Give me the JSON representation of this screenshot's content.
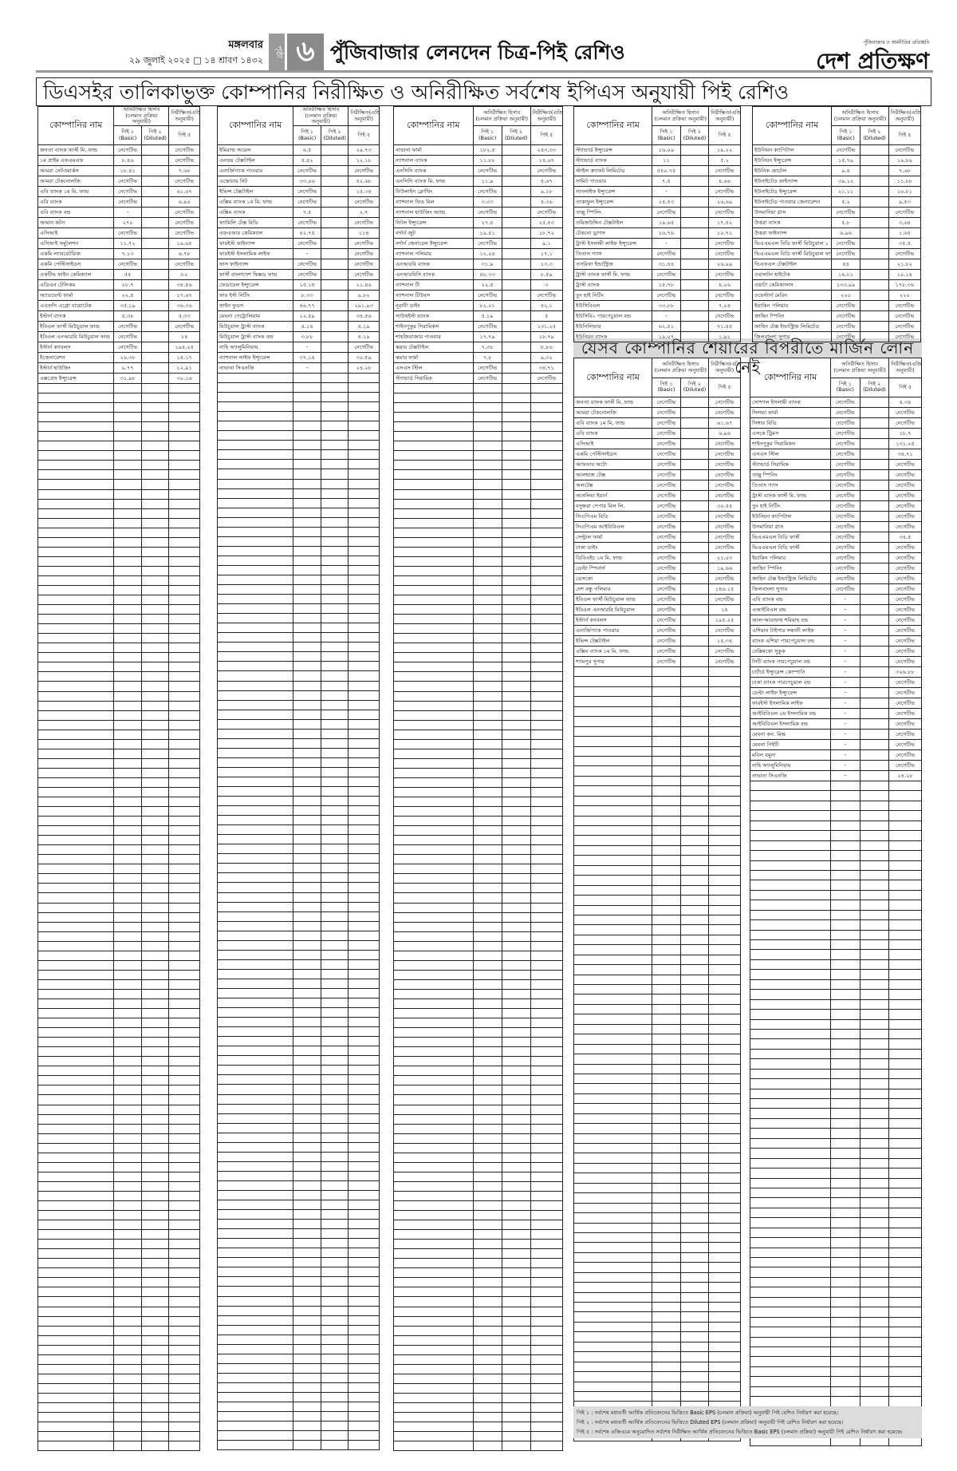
{
  "masthead": {
    "day": "মঙ্গলবার",
    "date": "২৯ জুলাই ২০২৫ □ ১৪ শ্রাবণ ১৪৩২",
    "page_label": "পৃষ্ঠা",
    "page_number": "৬",
    "page_title": "পুঁজিবাজার লেনদেন চিত্র-পিই রেশিও",
    "logo_tagline": "পুঁজিবাজার ও অর্থনীতির প্রতিচ্ছবি",
    "logo": "দেশ প্রতিক্ষণ"
  },
  "banner_main": "ডিএসইর তালিকাভুক্ত কোম্পানির নিরীক্ষিত ও অনিরীক্ষিত সর্বশেষ ইপিএস অনুযায়ী পিই রেশিও",
  "banner_margin": "যেসব কোম্পানির শেয়ারের বিপরীতে মার্জিন লোন নেই",
  "table_header": {
    "company": "কোম্পানির নাম",
    "unaudited": "অনিরীক্ষিত হিসাব (চলমান প্রক্রিয়া অনুযায়ী)",
    "audited": "নিরীক্ষিত(এজিএম অনুযায়ী)",
    "pe1": "পিই ১ (Basic)",
    "pe2": "পিই ২ (Diluted)",
    "pe5": "পিই ৫"
  },
  "tables": [
    {
      "id": "main-1",
      "rows": [
        [
          "জনতা ব্যাংক ফার্স্ট মি. ফান্ড",
          "নেগেটিভ",
          "",
          "নেগেটিভ"
        ],
        [
          "১ম প্রাইম এফএমএফ",
          "৮.৪৬",
          "",
          "নেগেটিভ"
        ],
        [
          "আমরা নেটওয়ার্কস",
          "১৮.৪১",
          "",
          "৭.৬৮"
        ],
        [
          "আমরা টেকনোলজি",
          "নেগেটিভ",
          "",
          "নেগেটিভ"
        ],
        [
          "এবি ব্যাংক ১ম মি. ফান্ড",
          "নেগেটিভ",
          "",
          "৬১.৬৭"
        ],
        [
          "এবি ব্যাংক",
          "নেগেটিভ",
          "",
          "৬.৯৬"
        ],
        [
          "এবি ব্যাংক বন্ড",
          "-",
          "",
          "নেগেটিভ"
        ],
        [
          "আমান কটন",
          "২৭০",
          "",
          "নেগেটিভ"
        ],
        [
          "এসিআই",
          "নেগেটিভ",
          "",
          "নেগেটিভ"
        ],
        [
          "এসিআই ফর্মুলেশন",
          "১১.৭২",
          "",
          "১৯.৬৫"
        ],
        [
          "একমি ল্যাবরেটরিজ",
          "৭.১৩",
          "",
          "৬.৭৮"
        ],
        [
          "একমি পেস্টিসাইডস",
          "নেগেটিভ",
          "",
          "নেগেটিভ"
        ],
        [
          "একটিভ ফাইন কেমিক্যাল",
          "৫৫",
          "",
          "৮০"
        ],
        [
          "এডিএন টেলিকম",
          "২৮.৭",
          "",
          "৩৪.৪৬"
        ],
        [
          "অ্যাডভেন্ট ফার্মা",
          "২২.৫",
          "",
          "১৭.৬৭"
        ],
        [
          "এএফসি এগ্রো বায়োটেক",
          "৩৫.১৯",
          "",
          "৩৬.৩৬"
        ],
        [
          "ইস্টার্ন ব্যাংক",
          "৫.৩৮",
          "",
          "৫.৩৩"
        ],
        [
          "ইবিএল ফার্স্ট মিউচুয়াল ফান্ড",
          "নেগেটিভ",
          "",
          "নেগেটিভ"
        ],
        [
          "ইবিএল এনআরবি মিউচুয়াল ফান্ড",
          "নেগেটিভ",
          "",
          "১৪"
        ],
        [
          "ইস্টার্ন ক্যাবলস",
          "নেগেটিভ",
          "",
          "১৯৫.২৫"
        ],
        [
          "ইজেনারেশন",
          "২৬.৩৮",
          "",
          "১৪.১৭"
        ],
        [
          "ইস্টার্ন হাউজিং",
          "৯.৭৭",
          "",
          "১২.৯১"
        ],
        [
          "এক্সপ্রেস ইন্স্যুরেন্স",
          "৩১.৯৮",
          "",
          "৩০.১৬"
        ]
      ]
    },
    {
      "id": "main-2",
      "rows": [
        [
          "ইমিরাল্ড অয়েল",
          "৬.৫",
          "",
          "২৯.৭৩"
        ],
        [
          "এনভয় টেক্সটাইল",
          "৫.৪২",
          "",
          "১২.১৮"
        ],
        [
          "এনার্জিপ্যাক পাওয়ার",
          "নেগেটিভ",
          "",
          "নেগেটিভ"
        ],
        [
          "এস্কোয়ার নিট",
          "৩৩.০৬",
          "",
          "৫২.৬৮"
        ],
        [
          "ইভিন্স টেক্সটাইল",
          "নেগেটিভ",
          "",
          "১৫.৩৪"
        ],
        [
          "এক্সিম ব্যাংক ১ম মি. ফান্ড",
          "নেগেটিভ",
          "",
          "নেগেটিভ"
        ],
        [
          "এক্সিম ব্যাংক",
          "৭.৫",
          "",
          "২.৭"
        ],
        [
          "ফ্যামিলি টেক্স বিডি",
          "নেগেটিভ",
          "",
          "নেগেটিভ"
        ],
        [
          "এফএআর কেমিক্যাল",
          "৪২.৭৫",
          "",
          "১১৪"
        ],
        [
          "ফারইস্ট ফাইন্যান্স",
          "নেগেটিভ",
          "",
          "নেগেটিভ"
        ],
        [
          "ফারইস্ট ইসলামিক লাইফ",
          "-",
          "",
          "নেগেটিভ"
        ],
        [
          "ফাস ফাইন্যান্স",
          "নেগেটিভ",
          "",
          "নেগেটিভ"
        ],
        [
          "ফার্স্ট বাংলাদেশ ফিক্সড ফান্ড",
          "নেগেটিভ",
          "",
          "নেগেটিভ"
        ],
        [
          "ফেডারেল ইন্স্যুরেন্স",
          "১৫.১৫",
          "",
          "২১.৪৬"
        ],
        [
          "ফার ইস্ট নিটিং",
          "৮.৩৩",
          "",
          "৯.৮২"
        ],
        [
          "ফাইন ফুডস",
          "৪৬.৭৭",
          "",
          "২৯১.৯৩"
        ],
        [
          "মেঘনা পেট্রোলিয়াম",
          "২২.৫৯",
          "",
          "৩৪.৫৬"
        ],
        [
          "মিউচুয়াল ট্রাস্ট ব্যাংক",
          "৪.১৪",
          "",
          "৪.১৯"
        ],
        [
          "মিউচুয়াল ট্রাস্ট ব্যাংক বন্ড",
          "৩.৮৮",
          "",
          "৪.১৯"
        ],
        [
          "নাহি অ্যালুমিনিয়াম",
          "-",
          "",
          "নেগেটিভ"
        ],
        [
          "ন্যাশনাল লাইফ ইন্স্যুরেন্স",
          "৩৭.১৪",
          "",
          "৩০.৫৯"
        ],
        [
          "নাভানা সিএনজি",
          "-",
          "",
          "২৪.২৮"
        ]
      ]
    },
    {
      "id": "main-3",
      "rows": [
        [
          "নাভানা ফার্মা",
          "১৮২.৫",
          "",
          "২৪৩.৩৩"
        ],
        [
          "ন্যাশনাল ব্যাংক",
          "১১.৮৮",
          "",
          "১৪.৬৭"
        ],
        [
          "এনসিসি ব্যাংক",
          "নেগেটিভ",
          "",
          "নেগেটিভ"
        ],
        [
          "এনসিসি ব্যাংক মি. ফান্ড",
          "১১.৯",
          "",
          "৫.৬৭"
        ],
        [
          "নিউলাইন ক্লোথিং",
          "নেগেটিভ",
          "",
          "৯.১৮"
        ],
        [
          "ন্যাশনাল ফিড মিল",
          "৩.৩৩",
          "",
          "৪.৩৬"
        ],
        [
          "ন্যাশনাল হাউজিং অ্যান্ড",
          "নেগেটিভ",
          "",
          "নেগেটিভ"
        ],
        [
          "নিটল ইন্স্যুরেন্স",
          "২৭.৪",
          "",
          "২৫.৫৩"
        ],
        [
          "নর্দার্ন জুট",
          "১৯.৫১",
          "",
          "১৮.৭২"
        ],
        [
          "নর্দার্ন জেনারেল ইন্স্যুরেন্স",
          "নেগেটিভ",
          "",
          "৯.১"
        ],
        [
          "ন্যাশনাল পলিমার",
          "১২.০৪",
          "",
          "১৭.১"
        ],
        [
          "এনআরবি ব্যাংক",
          "৩১.৯",
          "",
          "১৩.৩"
        ],
        [
          "এনআরবিসি ব্যাংক",
          "৪৮.৩৩",
          "",
          "৮.৫৯"
        ],
        [
          "ন্যাশনাল টি",
          "২২.৫",
          "",
          "৩"
        ],
        [
          "ন্যাশনাল টিউবস",
          "নেগেটিভ",
          "",
          "নেগেটিভ"
        ],
        [
          "নূরানী ডাইং",
          "৮২.০১",
          "",
          "৪২.১"
        ],
        [
          "সাউথইস্ট ব্যাংক",
          "৫.১৯",
          "",
          "৫"
        ],
        [
          "শাইনপুকুর সিরামিকস",
          "নেগেটিভ",
          "",
          "১৩১.২৫"
        ],
        [
          "শাহজিবাজার পাওয়ার",
          "১৭.৭৯",
          "",
          "১৮.৭৯"
        ],
        [
          "স্কয়ার টেক্সটাইল",
          "৭.৩৮",
          "",
          "৮.৮৬"
        ],
        [
          "স্কয়ার ফার্মা",
          "৭.৮",
          "",
          "৯.৩২"
        ],
        [
          "এসএস স্টিল",
          "নেগেটিভ",
          "",
          "৩৪.৭১"
        ],
        [
          "স্ট্যান্ডার্ড সিরামিক",
          "নেগেটিভ",
          "",
          "নেগেটিভ"
        ]
      ]
    },
    {
      "id": "main-4",
      "rows": [
        [
          "স্ট্যান্ডার্ড ইন্স্যুরেন্স",
          "১৬.০৯",
          "",
          "১৯.২২"
        ],
        [
          "স্ট্যান্ডার্ড ব্যাংক",
          "১১",
          "",
          "৫.২"
        ],
        [
          "স্টাইল ক্র্যাফট লিমিটেড",
          "৫৪০.৭৫",
          "",
          "নেগেটিভ"
        ],
        [
          "সামিট পাওয়ার",
          "৭.৫",
          "",
          "৪.৬৬"
        ],
        [
          "সানলাইফ ইন্স্যুরেন্স",
          "-",
          "",
          "নেগেটিভ"
        ],
        [
          "তাকাফুল ইন্স্যুরেন্স",
          "২৪.৫৩",
          "",
          "২৬.৬৯"
        ],
        [
          "তাল্লু স্পিনিং",
          "নেগেটিভ",
          "",
          "নেগেটিভ"
        ],
        [
          "তমিজউদ্দিন টেক্সটাইল",
          "১৯.৬৫",
          "",
          "১৭.৫২"
        ],
        [
          "টেকনো ড্রাগস",
          "১৬.৭৬",
          "",
          "১০.৭১"
        ],
        [
          "ট্রাস্ট ইসলামী লাইফ ইন্স্যুরেন্স",
          "-",
          "",
          "নেগেটিভ"
        ],
        [
          "তিতাস গ্যাস",
          "নেগেটিভ",
          "",
          "নেগেটিভ"
        ],
        [
          "তসরিফা ইন্ডাস্ট্রিজ",
          "৩১.৪৪",
          "",
          "২৬.৯৯"
        ],
        [
          "ট্রাস্ট ব্যাংক ফার্স্ট মি. ফান্ড",
          "নেগেটিভ",
          "",
          "নেগেটিভ"
        ],
        [
          "ট্রাস্ট ব্যাংক",
          "১৫.৭৮",
          "",
          "৪.০৬"
        ],
        [
          "তুং হাই নিটিং",
          "নেগেটিভ",
          "",
          "নেগেটিভ"
        ],
        [
          "ইউসিবিএল",
          "৩৩.৮৮",
          "",
          "৭.০৪"
        ],
        [
          "ইউসিবি২ পারপেচুয়াল বন্ড",
          "-",
          "",
          "নেগেটিভ"
        ],
        [
          "ইউনিলিভার",
          "৬২.৫১",
          "",
          "৭১.৫৫"
        ],
        [
          "ইউনিয়ন ব্যাংক",
          "১৯.০৭",
          "",
          "১.৯১"
        ]
      ]
    },
    {
      "id": "main-5",
      "rows": [
        [
          "ইউনিয়ন ক্যাপিটাল",
          "নেগেটিভ",
          "",
          "নেগেটিভ"
        ],
        [
          "ইউনিয়ন ইন্স্যুরেন্স",
          "১৫.৭৯",
          "",
          "১৯.৮৯"
        ],
        [
          "ইউনিক হোটেল",
          "৯.৪",
          "",
          "৭.৬৮"
        ],
        [
          "ইউনাইটেড ফাইন্যান্স",
          "৩৯.১২",
          "",
          "১১.৮৮"
        ],
        [
          "ইউনাইটেড ইন্স্যুরেন্স",
          "২১.১১",
          "",
          "১৬.৮১"
        ],
        [
          "ইউনাইটেড পাওয়ার জেনারেশন",
          "৫.২",
          "",
          "৯.৫৩"
        ],
        [
          "উসমানিয়া গ্লাস",
          "নেগেটিভ",
          "",
          "নেগেটিভ"
        ],
        [
          "উত্তরা ব্যাংক",
          "৫.৮",
          "",
          "৩.৬৪"
        ],
        [
          "উত্তরা ফাইন্যান্স",
          "৬.৯৬",
          "",
          "১.৬৫"
        ],
        [
          "ভিএএমএল বিডি ফার্স্ট মিউচুয়াল ১",
          "নেগেটিভ",
          "",
          "৩৫.৫"
        ],
        [
          "ভিএএমএল বিডি ফার্স্ট মিউচুয়াল ফান্ড",
          "নেগেটিভ",
          "",
          "নেগেটিভ"
        ],
        [
          "ভিএফএস টেক্সটাইল",
          "৫৪",
          "",
          "২১.৮২"
        ],
        [
          "ওয়ালটন হাইটেক",
          "১৪.৮১",
          "",
          "১০.১৪"
        ],
        [
          "ওয়াটা কেমিক্যালস",
          "১৩৩.৯৯",
          "",
          "১৭৮.৩৬"
        ],
        [
          "ওয়েস্টার্ন মেরিন",
          "২২০",
          "",
          "২২০"
        ],
        [
          "ইয়াকিন পলিমার",
          "নেগেটিভ",
          "",
          "নেগেটিভ"
        ],
        [
          "জাহিন স্পিনিং",
          "নেগেটিভ",
          "",
          "নেগেটিভ"
        ],
        [
          "জাহিন টেক্স ইন্ডাস্ট্রিজ লিমিটেড",
          "নেগেটিভ",
          "",
          "নেগেটিভ"
        ],
        [
          "জিলবাংলা সুগার",
          "নেগেটিভ",
          "",
          "নেগেটিভ"
        ]
      ]
    },
    {
      "id": "margin-1",
      "rows": [
        [
          "জনতা ব্যাংক ফার্স্ট মি. ফান্ড",
          "নেগেটিভ",
          "",
          "নেগেটিভ"
        ],
        [
          "আমরা টেকনোলজি",
          "নেগেটিভ",
          "",
          "নেগেটিভ"
        ],
        [
          "এবি ব্যাংক ১ম মি. ফান্ড",
          "নেগেটিভ",
          "",
          "৬১.৬৭"
        ],
        [
          "এবি ব্যাংক",
          "নেগেটিভ",
          "",
          "৬.৯৬"
        ],
        [
          "এসিআই",
          "নেগেটিভ",
          "",
          "নেগেটিভ"
        ],
        [
          "একমি পেস্টিসাইডস",
          "নেগেটিভ",
          "",
          "নেগেটিভ"
        ],
        [
          "আফতাব অটো",
          "নেগেটিভ",
          "",
          "নেগেটিভ"
        ],
        [
          "আলহাজ টেক্স",
          "নেগেটিভ",
          "",
          "নেগেটিভ"
        ],
        [
          "অলটেক্স",
          "নেগেটিভ",
          "",
          "নেগেটিভ"
        ],
        [
          "আনলিমা ইয়ার্ন",
          "নেগেটিভ",
          "",
          "নেগেটিভ"
        ],
        [
          "বসুন্ধরা পেপার মিল লি.",
          "নেগেটিভ",
          "",
          "৩০.৫৫"
        ],
        [
          "সিএপিএম বিডি",
          "নেগেটিভ",
          "",
          "নেগেটিভ"
        ],
        [
          "সিএপিএম আইবিবিএল",
          "নেগেটিভ",
          "",
          "নেগেটিভ"
        ],
        [
          "সেন্ট্রাল ফার্মা",
          "নেগেটিভ",
          "",
          "নেগেটিভ"
        ],
        [
          "ঢাকা ডাইং",
          "নেগেটিভ",
          "",
          "নেগেটিভ"
        ],
        [
          "ডিবিএইচ ১ম মি. ফান্ড",
          "নেগেটিভ",
          "",
          "২১.০৩"
        ],
        [
          "ডেল্টা স্পিনার্স",
          "নেগেটিভ",
          "",
          "১৯.৬৬"
        ],
        [
          "ডেসকো",
          "নেগেটিভ",
          "",
          "নেগেটিভ"
        ],
        [
          "দেশ বন্ধু পলিমার",
          "নেগেটিভ",
          "",
          "১৪৬.১৫"
        ],
        [
          "ইবিএল ফার্স্ট মিউচুয়াল ফান্ড",
          "নেগেটিভ",
          "",
          "নেগেটিভ"
        ],
        [
          "ইবিএল এনআরবি মিউচুয়াল",
          "নেগেটিভ",
          "",
          "১৪"
        ],
        [
          "ইস্টার্ন ক্যাবলস",
          "নেগেটিভ",
          "",
          "১৯৫.২৫"
        ],
        [
          "এনার্জিপ্যাক পাওয়ার",
          "নেগেটিভ",
          "",
          "নেগেটিভ"
        ],
        [
          "ইভিন্স টেক্সটাইল",
          "নেগেটিভ",
          "",
          "১৫.৩৪"
        ],
        [
          "এক্সিম ব্যাংক ১ম মি. ফান্ড",
          "নেগেটিভ",
          "",
          "নেগেটিভ"
        ],
        [
          "শ্যামপুর সুগার",
          "নেগেটিভ",
          "",
          "নেগেটিভ"
        ]
      ]
    },
    {
      "id": "margin-2",
      "rows": [
        [
          "সোশ্যাল ইসলামী ব্যাংক",
          "নেগেটিভ",
          "",
          "৪.৩৪"
        ],
        [
          "সিলভা ফার্মা",
          "নেগেটিভ",
          "",
          "নেগেটিভ"
        ],
        [
          "সিঙ্গার বিডি",
          "নেগেটিভ",
          "",
          "নেগেটিভ"
        ],
        [
          "এসকে ট্রিমস",
          "নেগেটিভ",
          "",
          "১৮.৭"
        ],
        [
          "শাইনপুকুর সিরামিকস",
          "নেগেটিভ",
          "",
          "১৩১.২৫"
        ],
        [
          "এসএস স্টিল",
          "নেগেটিভ",
          "",
          "৩৪.৭১"
        ],
        [
          "স্ট্যান্ডার্ড সিরামিক",
          "নেগেটিভ",
          "",
          "নেগেটিভ"
        ],
        [
          "তাল্লু স্পিনিং",
          "নেগেটিভ",
          "",
          "নেগেটিভ"
        ],
        [
          "তিতাস গ্যাস",
          "নেগেটিভ",
          "",
          "নেগেটিভ"
        ],
        [
          "ট্রাস্ট ব্যাংক ফার্স্ট মি. ফান্ড",
          "নেগেটিভ",
          "",
          "নেগেটিভ"
        ],
        [
          "তুং হাই নিটিং",
          "নেগেটিভ",
          "",
          "নেগেটিভ"
        ],
        [
          "ইউনিয়ন ক্যাপিটাল",
          "নেগেটিভ",
          "",
          "নেগেটিভ"
        ],
        [
          "উসমানিয়া গ্লাস",
          "নেগেটিভ",
          "",
          "নেগেটিভ"
        ],
        [
          "ভিএএমএল বিডি ফার্স্ট",
          "নেগেটিভ",
          "",
          "৩৫.৫"
        ],
        [
          "ভিএএমএল বিডি ফার্স্ট",
          "নেগেটিভ",
          "",
          "নেগেটিভ"
        ],
        [
          "ইয়াকিন পলিমার",
          "নেগেটিভ",
          "",
          "নেগেটিভ"
        ],
        [
          "জাহিন স্পিনিং",
          "নেগেটিভ",
          "",
          "নেগেটিভ"
        ],
        [
          "জাহিন টেক্স ইন্ডাস্ট্রিজ লিমিটেড",
          "নেগেটিভ",
          "",
          "নেগেটিভ"
        ],
        [
          "জিলবাংলা সুগার",
          "নেগেটিভ",
          "",
          "নেগেটিভ"
        ],
        [
          "এবি ব্যাংক বন্ড",
          "-",
          "",
          "নেগেটিভ"
        ],
        [
          "এআইবিএল বন্ড",
          "-",
          "",
          "নেগেটিভ"
        ],
        [
          "আল-আরাফাহ শরিয়াহ বন্ড",
          "-",
          "",
          "নেগেটিভ"
        ],
        [
          "এশিয়ান টাইগার সন্ধানী লাইফ",
          "-",
          "",
          "নেগেটিভ"
        ],
        [
          "ব্যাংক এশিয়া পারপেচুয়াল বন্ড",
          "-",
          "",
          "নেগেটিভ"
        ],
        [
          "বেক্সিমকো সুকুক",
          "-",
          "",
          "নেগেটিভ"
        ],
        [
          "সিটি ব্যাংক পারপেচুয়াল বন্ড",
          "-",
          "",
          "নেগেটিভ"
        ],
        [
          "চার্টার্ড ইন্স্যুরেন্স কোম্পানি",
          "-",
          "",
          "৩০৬.৮৮"
        ],
        [
          "ঢাকা ব্যাংক পারপেচুয়াল বন্ড",
          "-",
          "",
          "নেগেটিভ"
        ],
        [
          "ডেল্টা লাইফ ইন্স্যুরেন্স",
          "-",
          "",
          "নেগেটিভ"
        ],
        [
          "ফারইস্ট ইসলামিক লাইফ",
          "-",
          "",
          "নেগেটিভ"
        ],
        [
          "আইবিবিএল ২য় ইসলামিক বন্ড",
          "-",
          "",
          "নেগেটিভ"
        ],
        [
          "আইবিবিএল ইসলামিক বন্ড",
          "-",
          "",
          "নেগেটিভ"
        ],
        [
          "মেঘনা কন. মিল্ক",
          "-",
          "",
          "নেগেটিভ"
        ],
        [
          "মেঘনা পিইটি",
          "-",
          "",
          "নেগেটিভ"
        ],
        [
          "মবিল যমুনা",
          "-",
          "",
          "নেগেটিভ"
        ],
        [
          "নাহি অ্যালুমিনিয়াম",
          "-",
          "",
          "নেগেটিভ"
        ],
        [
          "নাভানা সিএনজি",
          "-",
          "",
          "২৪.২৮"
        ]
      ]
    }
  ],
  "footnotes": [
    "পিই ১ : সর্বশেষ মধ্যবর্তী আর্থিক প্রতিবেদনের ভিত্তিতে Basic EPS (চলমান প্রক্রিয়া) অনুযায়ী পিই রেশিও নির্ধারণ করা হয়েছে।",
    "পিই ২ : সর্বশেষ মধ্যবর্তী আর্থিক প্রতিবেদনের ভিত্তিতে Diluted EPS (চলমান প্রক্রিয়া) অনুযায়ী পিই রেশিও নির্ধারণ করা হয়েছে।",
    "পিই ৫ : সর্বশেষ এজিএমে অনুমোদিত সর্বশেষ নিরীক্ষিত আর্থিক প্রতিবেদনের ভিত্তিতে Basic EPS (চলমান প্রক্রিয়া) অনুযায়ী পিই রেশিও নির্ধারণ করা হয়েছে।"
  ]
}
